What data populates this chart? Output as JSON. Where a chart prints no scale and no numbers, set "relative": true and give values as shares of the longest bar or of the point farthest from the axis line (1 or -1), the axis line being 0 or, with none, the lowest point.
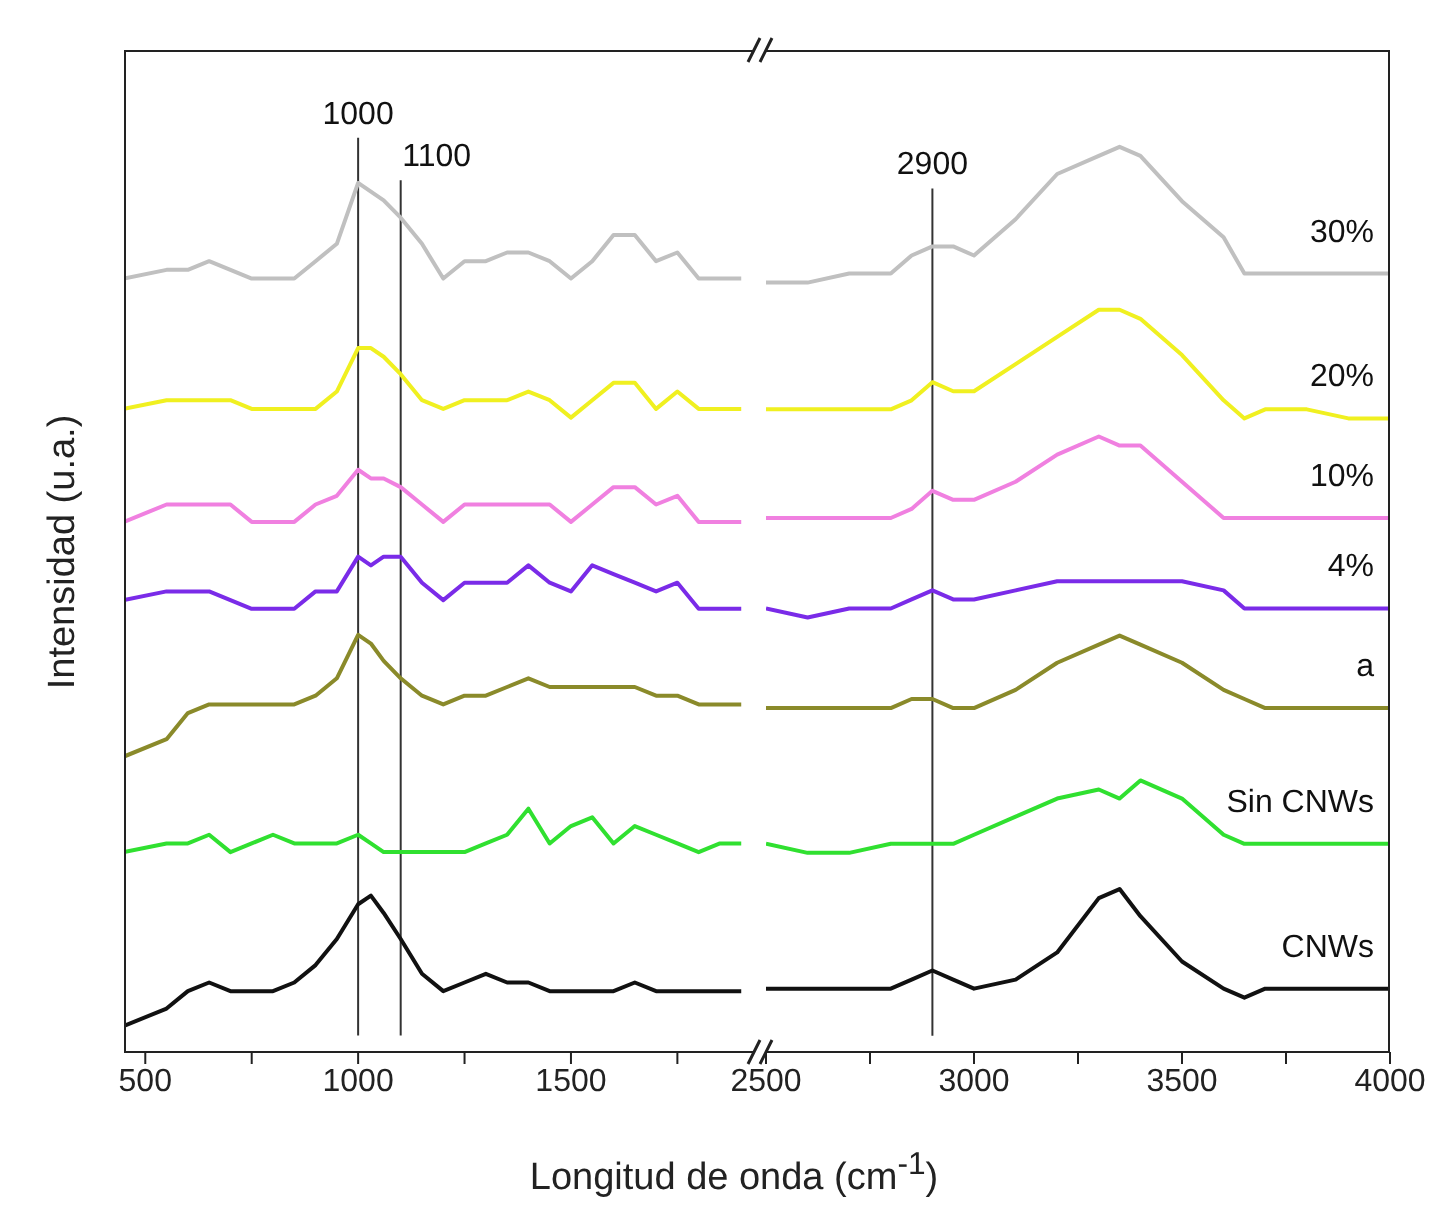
{
  "chart_data": [
    {
      "type": "line",
      "ylabel": "Intensidad (u.a.)",
      "xlabel": "Longitud de onda (cm$^{-1}$)",
      "relative": true,
      "tick_labels": "x",
      "grid": false,
      "legend": false,
      "marker": "none",
      "line_style": "solid",
      "xlim": [
        450,
        1930
      ],
      "xticks": [
        500,
        {
          "value": 750,
          "label": null
        },
        1000,
        {
          "value": 1250,
          "label": null
        },
        1500,
        {
          "value": 1750,
          "label": null
        }
      ],
      "ref_lines": [
        {
          "axis": "x",
          "value": 1000,
          "label": "1000"
        },
        {
          "axis": "x",
          "value": 1100,
          "label": "1100"
        }
      ],
      "x": [
        450,
        550,
        600,
        650,
        700,
        750,
        800,
        850,
        900,
        950,
        1000,
        1030,
        1060,
        1100,
        1150,
        1200,
        1250,
        1300,
        1350,
        1400,
        1450,
        1500,
        1550,
        1600,
        1650,
        1700,
        1750,
        1800,
        1850,
        1900
      ],
      "series": [
        {
          "color": "#c0c0c0",
          "values": [
            0.89,
            0.9,
            0.9,
            0.91,
            0.9,
            0.89,
            0.89,
            0.89,
            0.91,
            0.93,
            1,
            0.99,
            0.98,
            0.96,
            0.93,
            0.89,
            0.91,
            0.91,
            0.92,
            0.92,
            0.91,
            0.89,
            0.91,
            0.94,
            0.94,
            0.91,
            0.92,
            0.89,
            0.89,
            0.89
          ]
        },
        {
          "color": "#f0f020",
          "values": [
            0.74,
            0.75,
            0.75,
            0.75,
            0.75,
            0.74,
            0.74,
            0.74,
            0.74,
            0.76,
            0.81,
            0.81,
            0.8,
            0.78,
            0.75,
            0.74,
            0.75,
            0.75,
            0.75,
            0.76,
            0.75,
            0.73,
            0.75,
            0.77,
            0.77,
            0.74,
            0.76,
            0.74,
            0.74,
            0.74
          ]
        },
        {
          "color": "#f080e0",
          "values": [
            0.61,
            0.63,
            0.63,
            0.63,
            0.63,
            0.61,
            0.61,
            0.61,
            0.63,
            0.64,
            0.67,
            0.66,
            0.66,
            0.65,
            0.63,
            0.61,
            0.63,
            0.63,
            0.63,
            0.63,
            0.63,
            0.61,
            0.63,
            0.65,
            0.65,
            0.63,
            0.64,
            0.61,
            0.61,
            0.61
          ]
        },
        {
          "color": "#7a2be8",
          "values": [
            0.52,
            0.53,
            0.53,
            0.53,
            0.52,
            0.51,
            0.51,
            0.51,
            0.53,
            0.53,
            0.57,
            0.56,
            0.57,
            0.57,
            0.54,
            0.52,
            0.54,
            0.54,
            0.54,
            0.56,
            0.54,
            0.53,
            0.56,
            0.55,
            0.54,
            0.53,
            0.54,
            0.51,
            0.51,
            0.51
          ]
        },
        {
          "color": "#8a8a2a",
          "values": [
            0.34,
            0.36,
            0.39,
            0.4,
            0.4,
            0.4,
            0.4,
            0.4,
            0.41,
            0.43,
            0.48,
            0.47,
            0.45,
            0.43,
            0.41,
            0.4,
            0.41,
            0.41,
            0.42,
            0.43,
            0.42,
            0.42,
            0.42,
            0.42,
            0.42,
            0.41,
            0.41,
            0.4,
            0.4,
            0.4
          ]
        },
        {
          "color": "#30e030",
          "values": [
            0.23,
            0.24,
            0.24,
            0.25,
            0.23,
            0.24,
            0.25,
            0.24,
            0.24,
            0.24,
            0.25,
            0.24,
            0.23,
            0.23,
            0.23,
            0.23,
            0.23,
            0.24,
            0.25,
            0.28,
            0.24,
            0.26,
            0.27,
            0.24,
            0.26,
            0.25,
            0.24,
            0.23,
            0.24,
            0.24
          ]
        },
        {
          "color": "#111111",
          "values": [
            0.03,
            0.05,
            0.07,
            0.08,
            0.07,
            0.07,
            0.07,
            0.08,
            0.1,
            0.13,
            0.17,
            0.18,
            0.16,
            0.13,
            0.09,
            0.07,
            0.08,
            0.09,
            0.08,
            0.08,
            0.07,
            0.07,
            0.07,
            0.07,
            0.08,
            0.07,
            0.07,
            0.07,
            0.07,
            0.07
          ]
        }
      ]
    },
    {
      "type": "line",
      "relative": true,
      "tick_labels": "x",
      "grid": false,
      "legend": false,
      "marker": "none",
      "line_style": "solid",
      "xlim": [
        2500,
        4000
      ],
      "xticks": [
        2500,
        {
          "value": 2750,
          "label": null
        },
        3000,
        {
          "value": 3250,
          "label": null
        },
        3500,
        {
          "value": 3750,
          "label": null
        },
        4000
      ],
      "ref_lines": [
        {
          "axis": "x",
          "value": 2900,
          "label": "2900"
        }
      ],
      "x": [
        2500,
        2600,
        2700,
        2800,
        2850,
        2900,
        2950,
        3000,
        3100,
        3200,
        3300,
        3350,
        3400,
        3500,
        3600,
        3650,
        3700,
        3800,
        3900,
        4000
      ],
      "series": [
        {
          "name": "30%",
          "color": "#c0c0c0",
          "values": [
            0.85,
            0.85,
            0.86,
            0.86,
            0.88,
            0.89,
            0.89,
            0.88,
            0.92,
            0.97,
            0.99,
            1,
            0.99,
            0.94,
            0.9,
            0.86,
            0.86,
            0.86,
            0.86,
            0.86
          ]
        },
        {
          "name": "20%",
          "color": "#f0f020",
          "values": [
            0.71,
            0.71,
            0.71,
            0.71,
            0.72,
            0.74,
            0.73,
            0.73,
            0.76,
            0.79,
            0.82,
            0.82,
            0.81,
            0.77,
            0.72,
            0.7,
            0.71,
            0.71,
            0.7,
            0.7
          ]
        },
        {
          "name": "10%",
          "color": "#f080e0",
          "values": [
            0.59,
            0.59,
            0.59,
            0.59,
            0.6,
            0.62,
            0.61,
            0.61,
            0.63,
            0.66,
            0.68,
            0.67,
            0.67,
            0.63,
            0.59,
            0.59,
            0.59,
            0.59,
            0.59,
            0.59
          ]
        },
        {
          "name": "4%",
          "color": "#7a2be8",
          "values": [
            0.49,
            0.48,
            0.49,
            0.49,
            0.5,
            0.51,
            0.5,
            0.5,
            0.51,
            0.52,
            0.52,
            0.52,
            0.52,
            0.52,
            0.51,
            0.49,
            0.49,
            0.49,
            0.49,
            0.49
          ]
        },
        {
          "name": "a",
          "color": "#8a8a2a",
          "values": [
            0.38,
            0.38,
            0.38,
            0.38,
            0.39,
            0.39,
            0.38,
            0.38,
            0.4,
            0.43,
            0.45,
            0.46,
            0.45,
            0.43,
            0.4,
            0.39,
            0.38,
            0.38,
            0.38,
            0.38
          ]
        },
        {
          "name": "Sin CNWs",
          "color": "#30e030",
          "values": [
            0.23,
            0.22,
            0.22,
            0.23,
            0.23,
            0.23,
            0.23,
            0.24,
            0.26,
            0.28,
            0.29,
            0.28,
            0.3,
            0.28,
            0.24,
            0.23,
            0.23,
            0.23,
            0.23,
            0.23
          ]
        },
        {
          "name": "CNWs",
          "color": "#111111",
          "values": [
            0.07,
            0.07,
            0.07,
            0.07,
            0.08,
            0.09,
            0.08,
            0.07,
            0.08,
            0.11,
            0.17,
            0.18,
            0.15,
            0.1,
            0.07,
            0.06,
            0.07,
            0.07,
            0.07,
            0.07
          ]
        }
      ]
    }
  ]
}
